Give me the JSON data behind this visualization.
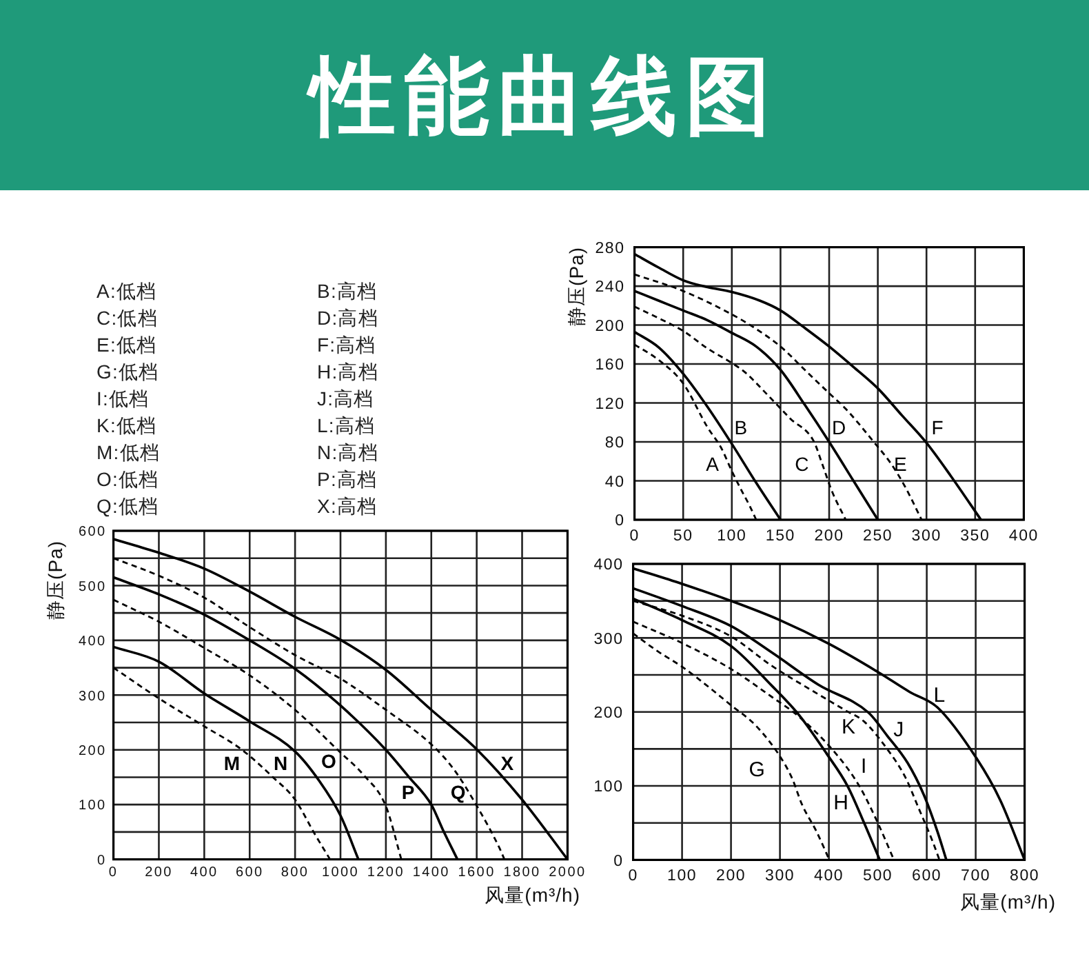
{
  "chart_data": [
    {
      "type": "other",
      "title": "性能曲线图",
      "annotations": [
        "A:低档",
        "B:高档",
        "C:低档",
        "D:高档",
        "E:低档",
        "F:高档",
        "G:低档",
        "H:高档",
        "I:低档",
        "J:高档",
        "K:低档",
        "L:高档",
        "M:低档",
        "N:高档",
        "O:低档",
        "P:高档",
        "Q:低档",
        "X:高档"
      ]
    },
    {
      "type": "line",
      "ylabel": "静压(Pa)",
      "xlim": [
        0,
        400
      ],
      "ylim": [
        0,
        280
      ],
      "xticks": [
        0,
        50,
        100,
        150,
        200,
        250,
        300,
        350,
        400
      ],
      "yticks": [
        0,
        40,
        80,
        120,
        160,
        200,
        240,
        280
      ],
      "grid": true,
      "series": [
        {
          "name": "A",
          "color": "#000000",
          "line_style": "dashed",
          "x": [
            0,
            25,
            50,
            75,
            89,
            100,
            110,
            118,
            125
          ],
          "values": [
            180,
            164,
            140,
            95,
            74,
            50,
            30,
            15,
            0
          ]
        },
        {
          "name": "B",
          "color": "#000000",
          "line_style": "solid",
          "x": [
            0,
            25,
            50,
            75,
            100,
            125,
            150
          ],
          "values": [
            193,
            177,
            150,
            116,
            78,
            38,
            0
          ]
        },
        {
          "name": "C",
          "color": "#000000",
          "line_style": "dashed",
          "x": [
            0,
            25,
            50,
            75,
            100,
            113,
            137,
            160,
            184,
            193,
            203,
            217
          ],
          "values": [
            219,
            207,
            194,
            176,
            161,
            152,
            128,
            104,
            81,
            57,
            29,
            0
          ]
        },
        {
          "name": "D",
          "color": "#000000",
          "line_style": "solid",
          "x": [
            0,
            25,
            50,
            75,
            100,
            125,
            150,
            175,
            200,
            225,
            250
          ],
          "values": [
            235,
            225,
            215,
            205,
            192,
            178,
            154,
            118,
            80,
            40,
            0
          ]
        },
        {
          "name": "E",
          "color": "#000000",
          "line_style": "dashed",
          "x": [
            0,
            50,
            100,
            125,
            150,
            177,
            200,
            217,
            245,
            264,
            278,
            295
          ],
          "values": [
            252,
            235,
            211,
            196,
            178,
            152,
            130,
            114,
            81,
            57,
            34,
            0
          ]
        },
        {
          "name": "F",
          "color": "#000000",
          "line_style": "solid",
          "x": [
            0,
            25,
            50,
            75,
            100,
            129,
            150,
            175,
            200,
            225,
            250,
            275,
            300,
            325,
            356
          ],
          "values": [
            273,
            259,
            246,
            239,
            234,
            225,
            215,
            197,
            178,
            157,
            135,
            107,
            79,
            45,
            0
          ]
        }
      ]
    },
    {
      "type": "line",
      "xlabel": "风量(m³/h)",
      "ylabel": "静压(Pa)",
      "xlim": [
        0,
        2000
      ],
      "ylim": [
        0,
        600
      ],
      "xticks": [
        0,
        200,
        400,
        600,
        800,
        1000,
        1200,
        1400,
        1600,
        1800,
        2000
      ],
      "yticks": [
        0,
        {
          "value": 50,
          "label": null
        },
        100,
        {
          "value": 150,
          "label": null
        },
        200,
        {
          "value": 250,
          "label": null
        },
        300,
        {
          "value": 350,
          "label": null
        },
        400,
        {
          "value": 450,
          "label": null
        },
        500,
        {
          "value": 550,
          "label": null
        },
        600
      ],
      "grid": true,
      "series": [
        {
          "name": "M",
          "color": "#000000",
          "line_style": "dashed",
          "x": [
            0,
            200,
            400,
            563,
            700,
            800,
            887,
            954
          ],
          "values": [
            350,
            294,
            243,
            201,
            151,
            109,
            46,
            0
          ]
        },
        {
          "name": "N",
          "color": "#000000",
          "line_style": "solid",
          "x": [
            0,
            200,
            400,
            600,
            800,
            907,
            1000,
            1079
          ],
          "values": [
            388,
            361,
            303,
            252,
            197,
            143,
            80,
            0
          ]
        },
        {
          "name": "O",
          "color": "#000000",
          "line_style": "dashed",
          "x": [
            0,
            200,
            400,
            600,
            800,
            1000,
            1100,
            1200,
            1268
          ],
          "values": [
            474,
            434,
            386,
            336,
            273,
            195,
            155,
            97,
            0
          ]
        },
        {
          "name": "P",
          "color": "#000000",
          "line_style": "solid",
          "x": [
            0,
            200,
            400,
            600,
            800,
            1000,
            1200,
            1300,
            1400,
            1450,
            1515
          ],
          "values": [
            515,
            484,
            447,
            400,
            348,
            281,
            200,
            151,
            100,
            55,
            0
          ]
        },
        {
          "name": "Q",
          "color": "#000000",
          "line_style": "dashed",
          "x": [
            0,
            200,
            400,
            600,
            800,
            1000,
            1200,
            1400,
            1500,
            1600,
            1700,
            1722
          ],
          "values": [
            550,
            518,
            478,
            424,
            373,
            330,
            273,
            210,
            164,
            98,
            21,
            0
          ]
        },
        {
          "name": "X",
          "color": "#000000",
          "line_style": "solid",
          "x": [
            0,
            200,
            400,
            600,
            800,
            1000,
            1200,
            1400,
            1600,
            1800,
            2000
          ],
          "values": [
            585,
            560,
            531,
            489,
            443,
            401,
            346,
            273,
            201,
            109,
            0
          ]
        }
      ]
    },
    {
      "type": "line",
      "xlabel": "风量(m³/h)",
      "xlim": [
        0,
        800
      ],
      "ylim": [
        0,
        400
      ],
      "xticks": [
        0,
        100,
        200,
        300,
        400,
        500,
        600,
        700,
        800
      ],
      "yticks": [
        0,
        {
          "value": 50,
          "label": null
        },
        100,
        {
          "value": 150,
          "label": null
        },
        200,
        {
          "value": 250,
          "label": null
        },
        300,
        {
          "value": 350,
          "label": null
        },
        400
      ],
      "grid": true,
      "series": [
        {
          "name": "G",
          "color": "#000000",
          "line_style": "dashed",
          "x": [
            0,
            50,
            100,
            150,
            200,
            250,
            300,
            325,
            345,
            375,
            401
          ],
          "values": [
            306,
            282,
            261,
            236,
            209,
            182,
            140,
            110,
            75,
            38,
            0
          ]
        },
        {
          "name": "H",
          "color": "#000000",
          "line_style": "solid",
          "x": [
            0,
            100,
            200,
            284,
            340,
            396,
            438,
            472,
            504
          ],
          "values": [
            353,
            324,
            289,
            235,
            195,
            143,
            100,
            50,
            0
          ]
        },
        {
          "name": "I",
          "color": "#000000",
          "line_style": "dashed",
          "x": [
            0,
            100,
            200,
            284,
            340,
            415,
            462,
            500,
            533
          ],
          "values": [
            322,
            293,
            258,
            220,
            193,
            143,
            100,
            50,
            0
          ]
        },
        {
          "name": "J",
          "color": "#000000",
          "line_style": "solid",
          "x": [
            0,
            100,
            200,
            284,
            378,
            481,
            519,
            561,
            594,
            622,
            640
          ],
          "values": [
            367,
            343,
            316,
            280,
            237,
            199,
            168,
            131,
            88,
            38,
            0
          ]
        },
        {
          "name": "K",
          "color": "#000000",
          "line_style": "dashed",
          "x": [
            0,
            100,
            200,
            284,
            378,
            434,
            472,
            519,
            556,
            584,
            612,
            626
          ],
          "values": [
            350,
            330,
            302,
            262,
            224,
            202,
            187,
            150,
            112,
            69,
            25,
            0
          ]
        },
        {
          "name": "L",
          "color": "#000000",
          "line_style": "solid",
          "x": [
            0,
            100,
            200,
            300,
            400,
            500,
            565,
            622,
            702,
            750,
            800
          ],
          "values": [
            394,
            373,
            350,
            324,
            292,
            254,
            227,
            206,
            137,
            81,
            0
          ]
        }
      ]
    }
  ]
}
